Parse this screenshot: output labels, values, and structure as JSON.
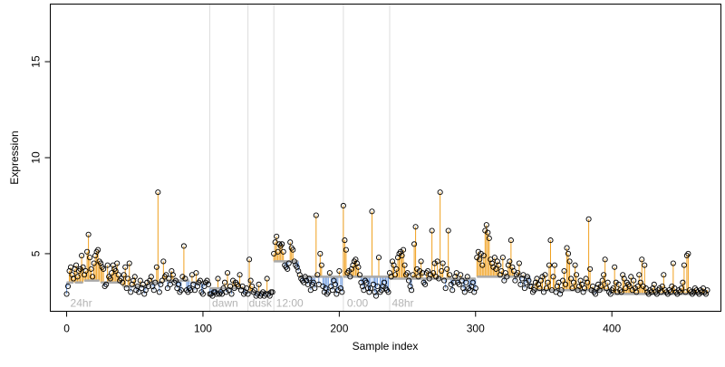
{
  "chart_data": {
    "type": "scatter",
    "title": "",
    "xlabel": "Sample index",
    "ylabel": "Expression",
    "xlim": [
      -12,
      480
    ],
    "ylim": [
      2,
      18
    ],
    "x_ticks": [
      0,
      100,
      200,
      300,
      400
    ],
    "y_ticks": [
      5,
      10,
      15
    ],
    "grid": false,
    "legend": "none",
    "vertical_lines": [
      105,
      133,
      152,
      203,
      237
    ],
    "annotations": [
      {
        "text": "24hr",
        "x": 2
      },
      {
        "text": "dawn",
        "x": 106
      },
      {
        "text": "dusk",
        "x": 133
      },
      {
        "text": "12:00",
        "x": 153
      },
      {
        "text": "0:00",
        "x": 205
      },
      {
        "text": "48hr",
        "x": 238
      }
    ],
    "colors": {
      "above_baseline": "#f0a01e",
      "below_baseline": "#6e9be0",
      "baseline": "#aaaaaa",
      "points": "#000000",
      "guides": "#dddddd"
    },
    "series": [
      {
        "name": "",
        "segments": [
          {
            "x0": 0,
            "x1": 5,
            "baseline": 3.5,
            "values": [
              2.9,
              3.3,
              4.1,
              4.3,
              3.9,
              3.7
            ]
          },
          {
            "x0": 6,
            "x1": 12,
            "baseline": 3.5,
            "values": [
              4.2,
              4.4,
              3.8,
              4.1,
              4.2,
              4.9,
              4.3
            ]
          },
          {
            "x0": 13,
            "x1": 24,
            "baseline": 3.6,
            "values": [
              3.9,
              4.1,
              5.1,
              6.0,
              4.8,
              4.2,
              3.8,
              4.5,
              4.9,
              5.1,
              5.2,
              4.6
            ]
          },
          {
            "x0": 25,
            "x1": 40,
            "baseline": 3.5,
            "values": [
              4.5,
              4.3,
              4.2,
              3.3,
              3.4,
              4.4,
              3.8,
              3.7,
              4.0,
              4.4,
              4.2,
              4.1,
              4.5,
              3.9,
              3.6,
              3.7
            ]
          },
          {
            "x0": 41,
            "x1": 60,
            "baseline": 3.3,
            "values": [
              3.5,
              3.9,
              4.3,
              3.2,
              3.7,
              4.5,
              3.0,
              3.4,
              3.6,
              3.8,
              3.1,
              3.3,
              3.0,
              3.6,
              3.2,
              3.4,
              2.9,
              3.1,
              3.5,
              3.3
            ]
          },
          {
            "x0": 61,
            "x1": 70,
            "baseline": 3.5,
            "values": [
              3.6,
              3.8,
              3.3,
              3.1,
              3.5,
              4.3,
              8.2,
              3.0,
              3.4,
              3.6
            ]
          },
          {
            "x0": 71,
            "x1": 90,
            "baseline": 3.6,
            "values": [
              4.6,
              3.8,
              3.9,
              3.2,
              3.7,
              3.4,
              4.1,
              3.9,
              3.5,
              3.6,
              3.2,
              3.4,
              3.0,
              3.1,
              3.8,
              5.4,
              3.7,
              3.1,
              3.0,
              3.2
            ]
          },
          {
            "x0": 91,
            "x1": 104,
            "baseline": 3.5,
            "values": [
              3.1,
              3.9,
              3.4,
              3.1,
              4.0,
              3.3,
              3.5,
              3.6,
              3.0,
              2.9,
              3.3,
              3.5,
              3.6,
              3.4
            ]
          },
          {
            "x0": 105,
            "x1": 132,
            "baseline": 3.2,
            "values": [
              2.9,
              2.9,
              2.8,
              3.0,
              3.0,
              2.9,
              3.7,
              2.9,
              3.0,
              2.9,
              3.2,
              3.5,
              3.0,
              4.0,
              3.1,
              3.3,
              2.9,
              3.6,
              3.2,
              3.5,
              3.4,
              3.3,
              3.9,
              3.1,
              3.3,
              2.9,
              3.0,
              3.2
            ]
          },
          {
            "x0": 133,
            "x1": 151,
            "baseline": 3.0,
            "values": [
              2.9,
              4.7,
              3.6,
              3.3,
              3.0,
              3.1,
              2.8,
              2.9,
              3.4,
              2.8,
              2.9,
              3.0,
              2.8,
              2.9,
              3.7,
              2.9,
              2.8,
              3.0,
              3.0
            ]
          },
          {
            "x0": 152,
            "x1": 170,
            "baseline": 4.6,
            "values": [
              5.0,
              5.6,
              5.9,
              5.1,
              5.5,
              5.4,
              5.5,
              5.1,
              4.4,
              4.3,
              4.2,
              4.5,
              5.6,
              5.3,
              5.2,
              4.6,
              4.4,
              4.3,
              4.1
            ]
          },
          {
            "x0": 171,
            "x1": 202,
            "baseline": 3.8,
            "values": [
              3.9,
              3.7,
              3.6,
              3.5,
              3.8,
              3.6,
              3.4,
              3.7,
              3.1,
              3.4,
              3.5,
              3.2,
              7.0,
              3.9,
              3.4,
              5.0,
              4.4,
              3.3,
              3.0,
              3.2,
              2.9,
              3.0,
              4.0,
              3.3,
              3.1,
              3.6,
              3.4,
              2.9,
              3.1,
              4.1,
              3.2,
              3.0
            ]
          },
          {
            "x0": 203,
            "x1": 236,
            "baseline": 3.8,
            "values": [
              7.5,
              5.7,
              5.2,
              4.0,
              4.1,
              3.8,
              4.2,
              4.4,
              4.6,
              4.7,
              4.5,
              4.3,
              3.9,
              3.5,
              3.3,
              3.1,
              3.6,
              3.5,
              3.2,
              3.0,
              3.2,
              7.2,
              3.4,
              3.0,
              2.8,
              3.3,
              4.8,
              3.0,
              3.1,
              3.3,
              3.5,
              3.2,
              3.1,
              3.0
            ]
          },
          {
            "x0": 237,
            "x1": 300,
            "baseline": 3.7,
            "values": [
              4.0,
              3.8,
              4.6,
              4.4,
              3.9,
              4.2,
              4.8,
              5.0,
              5.1,
              4.9,
              5.2,
              4.4,
              3.9,
              4.0,
              3.6,
              3.3,
              3.1,
              3.9,
              5.5,
              6.4,
              4.2,
              3.8,
              4.1,
              4.6,
              4.0,
              3.5,
              3.4,
              4.0,
              4.1,
              3.7,
              3.9,
              6.2,
              4.0,
              4.5,
              3.8,
              4.6,
              3.7,
              8.2,
              4.1,
              4.5,
              3.6,
              3.2,
              4.2,
              6.2,
              3.9,
              3.4,
              3.1,
              3.5,
              3.8,
              4.0,
              3.5,
              3.4,
              3.9,
              3.6,
              3.2,
              3.0,
              3.5,
              3.8,
              3.2,
              3.1,
              3.3,
              3.5,
              3.0,
              3.2
            ]
          },
          {
            "x0": 301,
            "x1": 340,
            "baseline": 3.8,
            "values": [
              4.8,
              5.1,
              4.7,
              5.0,
              4.4,
              4.9,
              6.2,
              6.5,
              6.1,
              5.8,
              4.7,
              4.5,
              4.3,
              4.8,
              4.2,
              4.6,
              4.4,
              3.9,
              4.1,
              4.8,
              3.6,
              4.0,
              3.8,
              4.4,
              4.6,
              5.7,
              4.3,
              4.1,
              3.6,
              3.9,
              4.0,
              4.5,
              3.4,
              3.7,
              3.9,
              3.2,
              3.5,
              3.8,
              3.6,
              3.3
            ]
          },
          {
            "x0": 341,
            "x1": 400,
            "baseline": 3.1,
            "values": [
              3.3,
              3.0,
              3.1,
              3.5,
              3.7,
              3.4,
              3.2,
              3.6,
              3.8,
              3.0,
              3.9,
              3.2,
              3.5,
              4.4,
              5.7,
              3.1,
              3.8,
              4.4,
              3.0,
              3.3,
              3.5,
              2.9,
              3.1,
              3.6,
              4.1,
              3.4,
              5.3,
              5.0,
              4.6,
              3.7,
              3.2,
              3.5,
              4.4,
              3.9,
              3.1,
              3.3,
              3.6,
              3.4,
              3.0,
              3.2,
              3.7,
              3.5,
              6.8,
              4.2,
              3.1,
              3.3,
              3.0,
              2.9,
              3.2,
              3.4,
              3.1,
              3.3,
              3.6,
              3.9,
              4.7,
              3.2,
              3.5,
              3.0,
              2.9,
              3.1
            ]
          },
          {
            "x0": 401,
            "x1": 470,
            "baseline": 2.9,
            "values": [
              3.2,
              4.3,
              3.5,
              3.0,
              3.4,
              3.1,
              3.0,
              3.9,
              3.7,
              3.2,
              3.5,
              3.4,
              3.3,
              3.8,
              3.1,
              3.6,
              3.2,
              3.0,
              3.3,
              3.9,
              3.5,
              4.7,
              3.3,
              4.4,
              3.2,
              3.0,
              2.9,
              3.1,
              3.0,
              3.2,
              3.4,
              3.0,
              2.9,
              3.1,
              3.2,
              3.0,
              3.3,
              3.9,
              3.1,
              3.0,
              2.9,
              3.1,
              3.0,
              3.3,
              4.5,
              3.2,
              3.0,
              2.9,
              3.1,
              3.0,
              3.2,
              3.5,
              4.4,
              3.0,
              4.9,
              5.0,
              3.1,
              3.0,
              2.9,
              3.0,
              3.2,
              3.1,
              3.0,
              2.9,
              3.1,
              3.0,
              3.2,
              3.0,
              2.9,
              3.1
            ]
          }
        ]
      }
    ]
  }
}
